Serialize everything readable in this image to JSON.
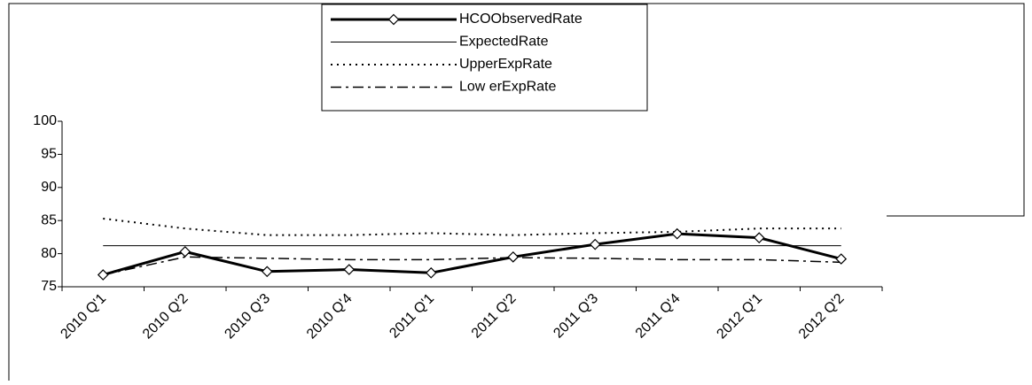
{
  "chart_data": {
    "type": "line",
    "categories": [
      "2010 Q'1",
      "2010 Q'2",
      "2010 Q'3",
      "2010 Q'4",
      "2011 Q'1",
      "2011 Q'2",
      "2011 Q'3",
      "2011 Q'4",
      "2012 Q'1",
      "2012 Q'2"
    ],
    "series": [
      {
        "name": "HCOObservedRate",
        "color": "#000000",
        "width": 3,
        "dash": "solid",
        "marker": "diamond",
        "values": [
          76.8,
          80.3,
          77.3,
          77.6,
          77.1,
          79.5,
          81.4,
          83.0,
          82.4,
          79.2
        ]
      },
      {
        "name": "ExpectedRate",
        "color": "#000000",
        "width": 1,
        "dash": "solid",
        "values": [
          81.2,
          81.2,
          81.2,
          81.2,
          81.2,
          81.2,
          81.2,
          81.2,
          81.2,
          81.2
        ]
      },
      {
        "name": "UpperExpRate",
        "color": "#000000",
        "width": 2,
        "dash": "dotted",
        "values": [
          85.3,
          83.8,
          82.8,
          82.8,
          83.1,
          82.8,
          83.1,
          83.3,
          83.8,
          83.8
        ]
      },
      {
        "name": "Low erExpRate",
        "color": "#000000",
        "width": 1.5,
        "dash": "dashdot",
        "values": [
          76.8,
          79.5,
          79.3,
          79.1,
          79.1,
          79.4,
          79.3,
          79.1,
          79.1,
          78.7
        ]
      }
    ],
    "ylim": [
      75,
      100
    ],
    "yticks": [
      75,
      80,
      85,
      90,
      95,
      100
    ],
    "grid": false
  }
}
